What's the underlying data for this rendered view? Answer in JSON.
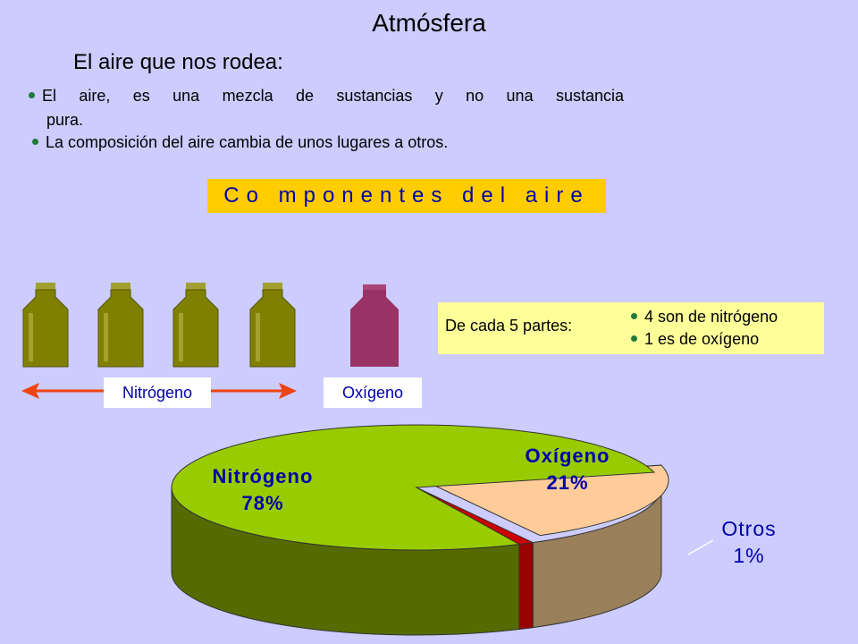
{
  "title": "Atmósfera",
  "subtitle": "El aire que nos rodea:",
  "bullets": {
    "b1_part1": "El aire, es una mezcla de sustancias y no una sustancia",
    "b1_part2": "pura.",
    "b2": "La composición del aire cambia de unos lugares a otros."
  },
  "components_banner": "Co mponentes del aire",
  "info": {
    "lead": "De cada 5 partes:",
    "line1": "4 son de nitrógeno",
    "line2": "1 es de oxígeno"
  },
  "tags": {
    "nitrogen": "Nitrógeno",
    "oxygen": "Oxígeno"
  },
  "colors": {
    "background": "#ccccff",
    "nitrogen_bottle": "#808000",
    "oxygen_bottle": "#993366",
    "banner": "#ffcc00",
    "pie_nitrogen": "#99cc00",
    "pie_oxygen": "#ffcc99",
    "pie_others": "#cc0000"
  },
  "chart_data": {
    "type": "pie",
    "title": "",
    "slices": [
      {
        "name": "Nitrógeno",
        "value": 78,
        "label": "78%"
      },
      {
        "name": "Oxígeno",
        "value": 21,
        "label": "21%"
      },
      {
        "name": "Otros",
        "value": 1,
        "label": "1%"
      }
    ]
  }
}
